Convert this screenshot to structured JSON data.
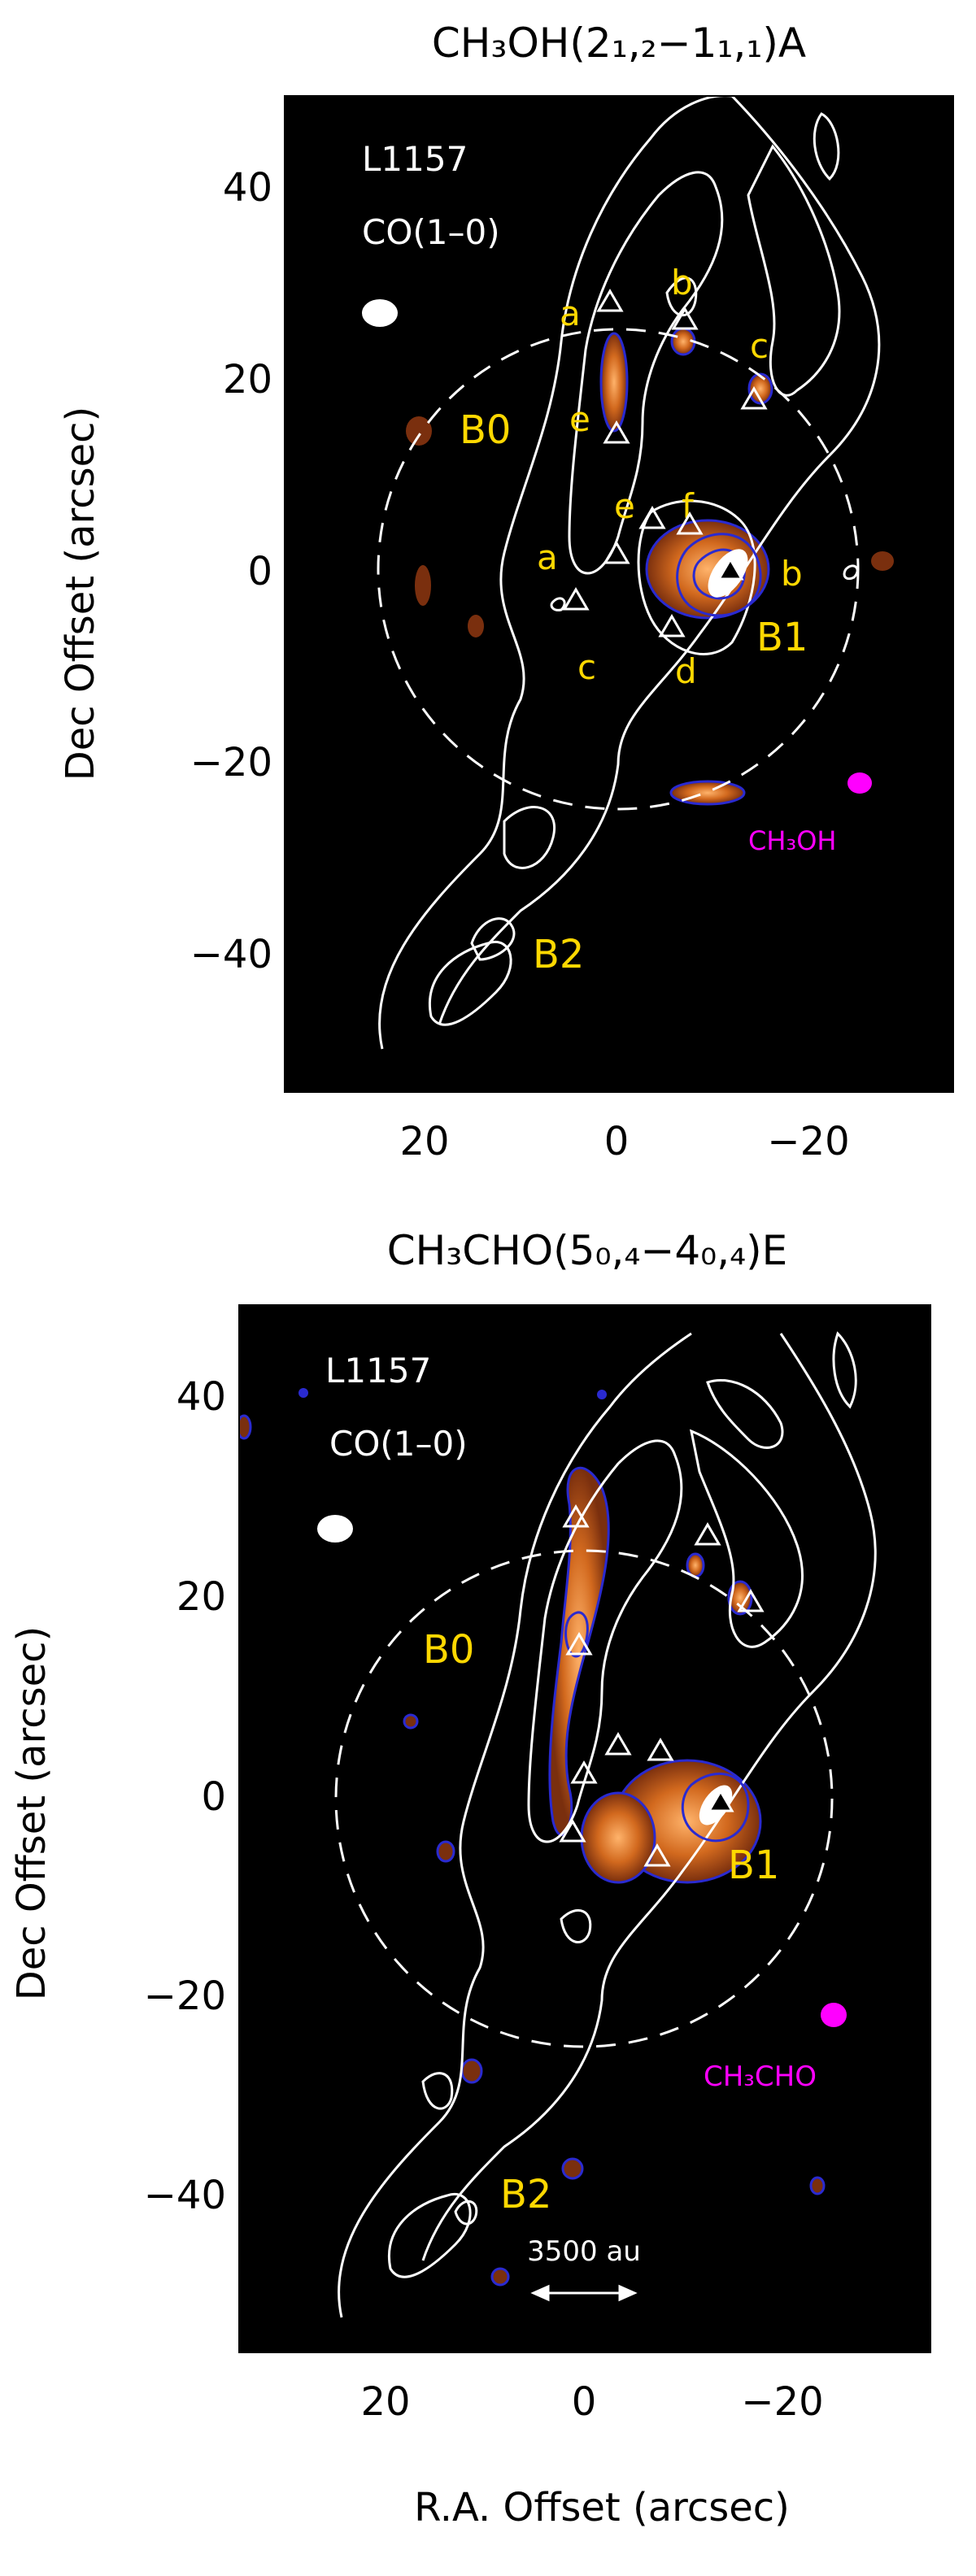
{
  "figure": {
    "x_axis_label": "R.A. Offset (arcsec)",
    "y_axis_label": "Dec Offset (arcsec)",
    "x_ticks": [
      "20",
      "0",
      "−20"
    ],
    "y_ticks": [
      "40",
      "20",
      "0",
      "−20",
      "−40"
    ],
    "colors": {
      "background": "#000000",
      "contour": "#ffffff",
      "label": "#ffd800",
      "beam_line": "#ff00ff",
      "emission": "#d2691e",
      "emission_edge": "#2a2ad0"
    }
  },
  "panels": [
    {
      "title": "CH₃OH(2₁,₂−1₁,₁)A",
      "source": "L1157",
      "tracer": "CO(1–0)",
      "line_label": "CH₃OH",
      "regions": [
        "B0",
        "B1",
        "B2"
      ],
      "knots": [
        "a",
        "b",
        "c",
        "e",
        "e",
        "f",
        "a",
        "b",
        "c",
        "d"
      ]
    },
    {
      "title": "CH₃CHO(5₀,₄−4₀,₄)E",
      "source": "L1157",
      "tracer": "CO(1–0)",
      "line_label": "CH₃CHO",
      "regions": [
        "B0",
        "B1",
        "B2"
      ],
      "scale_bar": "3500 au"
    }
  ]
}
